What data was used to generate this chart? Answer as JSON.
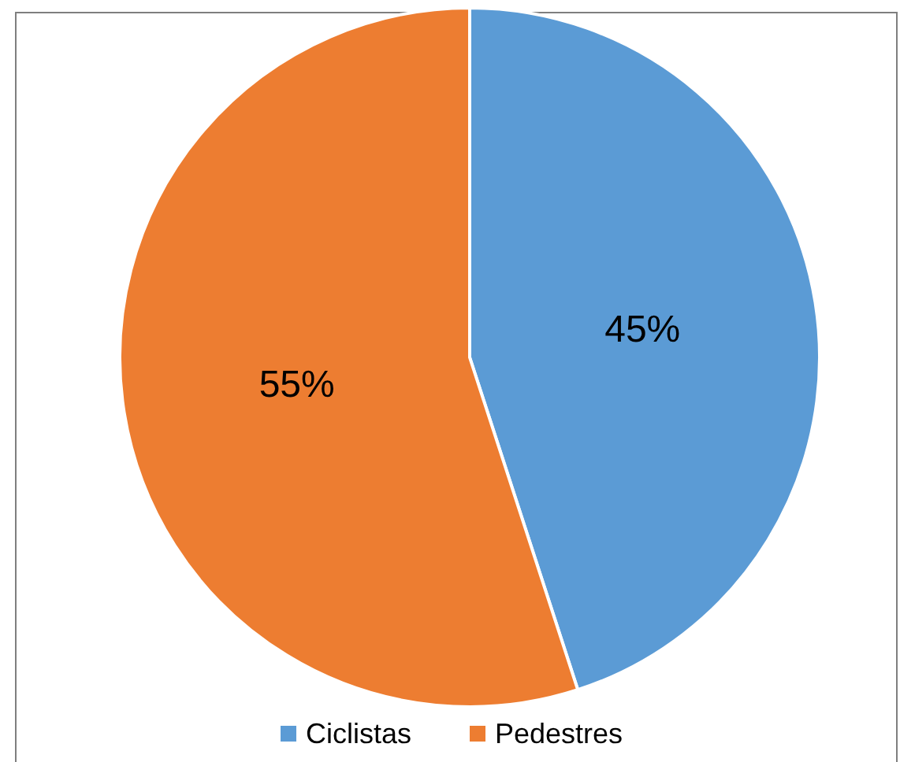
{
  "chart_data": {
    "type": "pie",
    "categories": [
      "Ciclistas",
      "Pedestres"
    ],
    "values": [
      45,
      55
    ],
    "colors": [
      "#5b9bd5",
      "#ed7d31"
    ],
    "value_labels": [
      "45%",
      "55%"
    ],
    "legend": "bottom"
  }
}
